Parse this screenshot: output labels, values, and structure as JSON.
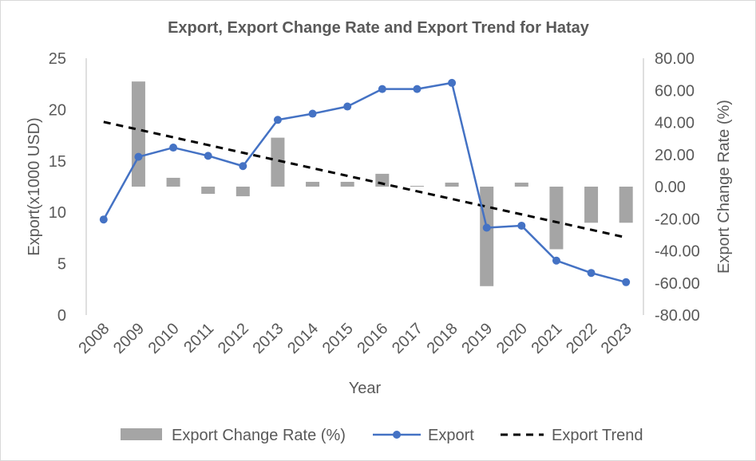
{
  "chart_data": {
    "type": "bar",
    "title": "Export, Export Change Rate and Export Trend for Hatay",
    "xlabel": "Year",
    "ylabel_left": "Export(x1000 USD)",
    "ylabel_right": "Export Change Rate (%)",
    "categories": [
      "2008",
      "2009",
      "2010",
      "2011",
      "2012",
      "2013",
      "2014",
      "2015",
      "2016",
      "2017",
      "2018",
      "2019",
      "2020",
      "2021",
      "2022",
      "2023"
    ],
    "y_left_ticks": [
      "0",
      "5",
      "10",
      "15",
      "20",
      "25"
    ],
    "y_left_lim": [
      0,
      25
    ],
    "y_right_ticks": [
      "-80.00",
      "-60.00",
      "-40.00",
      "-20.00",
      "0.00",
      "20.00",
      "40.00",
      "60.00",
      "80.00"
    ],
    "y_right_lim": [
      -80,
      80
    ],
    "series": [
      {
        "name": "Export Change Rate (%)",
        "type": "bar",
        "axis": "right",
        "color": "#a5a5a5",
        "values": [
          null,
          65.5,
          5.5,
          -4.5,
          -6.0,
          30.5,
          3.0,
          3.0,
          8.0,
          0.5,
          2.5,
          -62.0,
          2.5,
          -39.0,
          -22.5,
          -22.5
        ]
      },
      {
        "name": "Export",
        "type": "line",
        "axis": "left",
        "color": "#4472c4",
        "values": [
          9.3,
          15.4,
          16.3,
          15.5,
          14.5,
          19.0,
          19.6,
          20.3,
          22.0,
          22.0,
          22.6,
          8.5,
          8.7,
          5.3,
          4.1,
          3.2
        ]
      },
      {
        "name": "Export Trend",
        "type": "line",
        "style": "dashed",
        "axis": "left",
        "color": "#000000",
        "values": [
          18.8,
          18.05,
          17.3,
          16.55,
          15.8,
          15.05,
          14.3,
          13.55,
          12.8,
          12.05,
          11.3,
          10.55,
          9.8,
          9.05,
          8.3,
          7.55
        ]
      }
    ],
    "legend_position": "bottom",
    "grid": false
  }
}
